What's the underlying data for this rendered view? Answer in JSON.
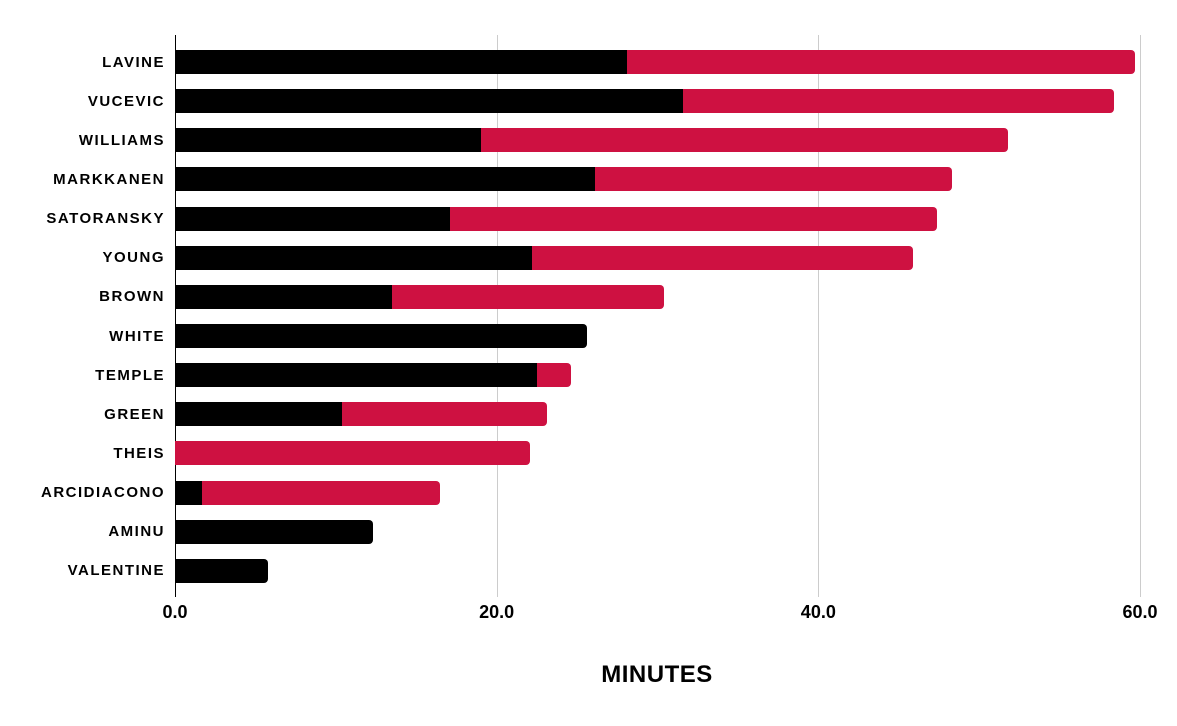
{
  "colors": {
    "background": "#FFFFFF",
    "series_1": "#000000",
    "series_2": "#CE1141",
    "gridline": "#CCCCCC",
    "axis_line": "#000000",
    "text": "#000000"
  },
  "chart_data": {
    "type": "bar",
    "orientation": "horizontal",
    "stacked": true,
    "title": "",
    "xlabel": "MINUTES",
    "ylabel": "",
    "xlim": [
      0,
      60
    ],
    "grid": "vertical",
    "legend_position": "none",
    "x_ticks": [
      {
        "label": "0.0",
        "value": 0
      },
      {
        "label": "20.0",
        "value": 20
      },
      {
        "label": "40.0",
        "value": 40
      },
      {
        "label": "60.0",
        "value": 60
      }
    ],
    "categories": [
      "LAVINE",
      "VUCEVIC",
      "WILLIAMS",
      "MARKKANEN",
      "SATORANSKY",
      "YOUNG",
      "BROWN",
      "WHITE",
      "TEMPLE",
      "GREEN",
      "THEIS",
      "ARCIDIACONO",
      "AMINU",
      "VALENTINE"
    ],
    "series": [
      {
        "name": "series-1-black",
        "color": "#000000",
        "values": [
          28.1,
          31.6,
          19.0,
          26.1,
          17.1,
          22.2,
          13.5,
          25.6,
          22.5,
          10.4,
          0,
          1.7,
          12.3,
          5.8
        ]
      },
      {
        "name": "series-2-crimson",
        "color": "#CE1141",
        "values": [
          31.6,
          26.8,
          32.8,
          22.2,
          30.3,
          23.7,
          16.9,
          0,
          2.1,
          12.7,
          22.1,
          14.8,
          0,
          0
        ]
      }
    ]
  }
}
